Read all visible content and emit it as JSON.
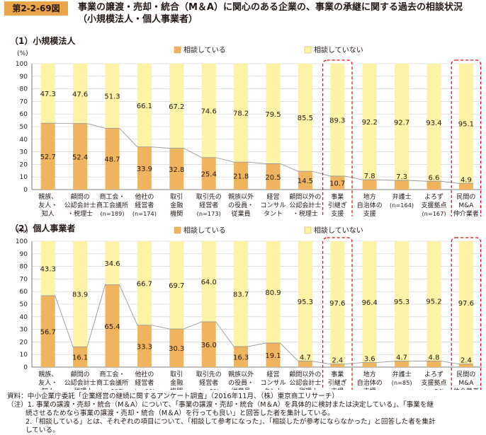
{
  "figure": {
    "number": "第2-2-69図",
    "title_line1": "事業の譲渡・売却・統合（M＆A）に関心のある企業の、事業の承継に関する過去の相談状況",
    "title_line2": "（小規模法人・個人事業者）"
  },
  "colors": {
    "consulted": "#f0b35e",
    "not_consulted": "#fcf3a6",
    "line": "#9a9a9a",
    "highlight": "#e60012",
    "header_bg": "#e8a54a"
  },
  "chart_data": [
    {
      "type": "bar",
      "stacked": true,
      "panel_label": "（1）小規模法人",
      "y_unit": "(%)",
      "ylim": [
        0,
        100
      ],
      "yticks": [
        0,
        10,
        20,
        30,
        40,
        50,
        60,
        70,
        80,
        90,
        100
      ],
      "legend_position": "top-right",
      "categories": [
        [
          "親族、",
          "友人・",
          "知人",
          "(n=188)"
        ],
        [
          "顧問の",
          "公認会計士",
          "・税理士",
          "(n=185)"
        ],
        [
          "商工会・",
          "商工会議所",
          "(n=189)"
        ],
        [
          "他社の",
          "経営者",
          "(n=174)"
        ],
        [
          "取引",
          "金融",
          "機関",
          "(n=174)"
        ],
        [
          "取引先の",
          "経営者",
          "(n=173)"
        ],
        [
          "親族以外",
          "の役員・",
          "従業員",
          "(n=170)"
        ],
        [
          "経営",
          "コンサル",
          "タント",
          "(n=171)"
        ],
        [
          "顧問以外の",
          "公認会計士",
          "・税理士",
          "(n=166)"
        ],
        [
          "事業",
          "引継ぎ",
          "支援",
          "センター",
          "(n=168)"
        ],
        [
          "地方",
          "自治体の",
          "支援",
          "機関",
          "(n=166)"
        ],
        [
          "弁護士",
          "(n=164)"
        ],
        [
          "よろず",
          "支援拠点",
          "(n=167)"
        ],
        [
          "民間の",
          "M&A",
          "仲介業者",
          "(n=164)"
        ]
      ],
      "series": [
        {
          "name": "相談している",
          "values": [
            52.7,
            52.4,
            48.7,
            33.9,
            32.8,
            25.4,
            21.8,
            20.5,
            14.5,
            10.7,
            7.8,
            7.3,
            6.6,
            4.9
          ]
        },
        {
          "name": "相談していない",
          "values": [
            47.3,
            47.6,
            51.3,
            66.1,
            67.2,
            74.6,
            78.2,
            79.5,
            85.5,
            89.3,
            92.2,
            92.7,
            93.4,
            95.1
          ]
        }
      ],
      "highlighted": [
        9,
        13
      ]
    },
    {
      "type": "bar",
      "stacked": true,
      "panel_label": "（2）個人事業者",
      "y_unit": "(%)",
      "ylim": [
        0,
        100
      ],
      "yticks": [
        0,
        10,
        20,
        30,
        40,
        50,
        60,
        70,
        80,
        90,
        100
      ],
      "legend_position": "top-right",
      "categories": [
        [
          "親族、",
          "友人・",
          "知人",
          "(n=97)"
        ],
        [
          "顧問の",
          "公認会計士",
          "・税理士",
          "(n=87)"
        ],
        [
          "商工会・",
          "商工会議所",
          "(n=107)"
        ],
        [
          "他社の",
          "経営者",
          "(n=90)"
        ],
        [
          "取引",
          "金融",
          "機関",
          "(n=89)"
        ],
        [
          "取引先の",
          "経営者",
          "(n=89)"
        ],
        [
          "親族以外",
          "の役員・",
          "従業員",
          "(n=86)"
        ],
        [
          "経営",
          "コンサル",
          "タント",
          "(n=89)"
        ],
        [
          "顧問以外の",
          "公認会計士",
          "・税理士",
          "(n=86)"
        ],
        [
          "事業",
          "引継ぎ",
          "支援",
          "センター",
          "(n=85)"
        ],
        [
          "地方",
          "自治体の",
          "支援",
          "機関",
          "(n=84)"
        ],
        [
          "弁護士",
          "(n=85)"
        ],
        [
          "よろず",
          "支援拠点",
          "(n=84)"
        ],
        [
          "民間の",
          "M&A",
          "仲介業者",
          "(n=84)"
        ]
      ],
      "series": [
        {
          "name": "相談している",
          "values": [
            56.7,
            16.1,
            65.4,
            33.3,
            30.3,
            36.0,
            16.3,
            19.1,
            4.7,
            2.4,
            3.6,
            4.7,
            4.8,
            2.4
          ]
        },
        {
          "name": "相談していない",
          "values": [
            43.3,
            83.9,
            34.6,
            66.7,
            69.7,
            64.0,
            83.7,
            80.9,
            95.3,
            97.6,
            96.4,
            95.3,
            95.2,
            97.6
          ]
        }
      ],
      "highlighted": [
        9,
        13
      ]
    }
  ],
  "notes": {
    "source": "資料：中小企業庁委託「企業経営の継続に関するアンケート調査」（2016年11月、（株）東京商工リサーチ）",
    "note1_line1": "（注）1. 事業の譲渡・売却・統合（M＆A）について、「事業の譲渡・売却・統合（M＆A）を具体的に検討または決定している」、「事業を継",
    "note1_line2": "続させるためなら事業の譲渡・売却・統合（M＆A）を行っても良い」と回答した者を集計している。",
    "note2_line1": "2.「相談している」とは、それぞれの項目について、「相談して参考になった」、「相談したが参考にならなかった」と回答した者を集計",
    "note2_line2": "している。"
  }
}
